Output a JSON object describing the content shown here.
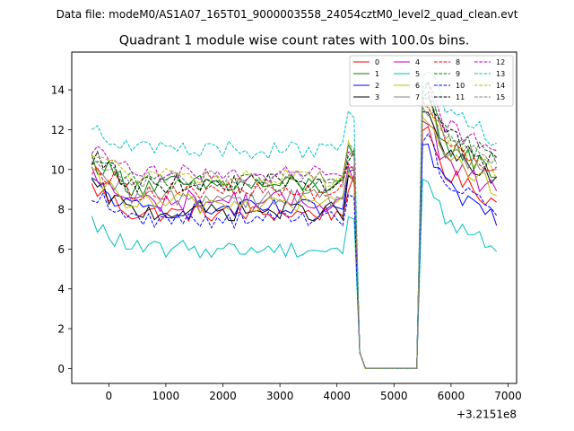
{
  "figure": {
    "suptitle": "Data file: modeM0/AS1A07_165T01_9000003558_24054cztM0_level2_quad_clean.evt"
  },
  "chart_data": {
    "type": "line",
    "title": "Quadrant 1 module wise count rates with 100.0s bins.",
    "xlabel": "",
    "ylabel": "",
    "x_offset_label": "+3.2151e8",
    "xlim": [
      -650,
      7150
    ],
    "ylim": [
      -0.75,
      15.9
    ],
    "xticks": [
      0,
      1000,
      2000,
      3000,
      4000,
      5000,
      6000,
      7000
    ],
    "xtick_labels": [
      "0",
      "1000",
      "2000",
      "3000",
      "4000",
      "5000",
      "6000",
      "7000"
    ],
    "yticks": [
      0,
      2,
      4,
      6,
      8,
      10,
      12,
      14
    ],
    "ytick_labels": [
      "0",
      "2",
      "4",
      "6",
      "8",
      "10",
      "12",
      "14"
    ],
    "grid": false,
    "legend_position": "top-right",
    "legend_columns": 4,
    "time_segments": [
      {
        "start": -300,
        "end": 4300,
        "step": 100
      },
      {
        "start": 4300,
        "end": 5400,
        "step": 100
      },
      {
        "start": 5400,
        "end": 6800,
        "step": 100
      }
    ],
    "series": [
      {
        "name": "0",
        "color": "#ff0000",
        "dash": false,
        "level_a": 7.8,
        "level_b": 10.5,
        "amp": 0.45
      },
      {
        "name": "1",
        "color": "#008000",
        "dash": false,
        "level_a": 9.2,
        "level_b": 12.0,
        "amp": 0.55
      },
      {
        "name": "2",
        "color": "#0000ff",
        "dash": false,
        "level_a": 8.0,
        "level_b": 9.8,
        "amp": 0.5
      },
      {
        "name": "3",
        "color": "#000000",
        "dash": false,
        "level_a": 7.9,
        "level_b": 11.5,
        "amp": 0.5
      },
      {
        "name": "4",
        "color": "#bf00bf",
        "dash": false,
        "level_a": 8.4,
        "level_b": 11.0,
        "amp": 0.6
      },
      {
        "name": "5",
        "color": "#00bfbf",
        "dash": false,
        "level_a": 6.0,
        "level_b": 8.2,
        "amp": 0.45
      },
      {
        "name": "6",
        "color": "#bfbf00",
        "dash": false,
        "level_a": 8.3,
        "level_b": 11.3,
        "amp": 0.55
      },
      {
        "name": "7",
        "color": "#808080",
        "dash": false,
        "level_a": 8.6,
        "level_b": 11.8,
        "amp": 0.55
      },
      {
        "name": "8",
        "color": "#ff0000",
        "dash": true,
        "level_a": 8.9,
        "level_b": 12.2,
        "amp": 0.45
      },
      {
        "name": "9",
        "color": "#008000",
        "dash": true,
        "level_a": 9.4,
        "level_b": 12.6,
        "amp": 0.5
      },
      {
        "name": "10",
        "color": "#0000ff",
        "dash": true,
        "level_a": 7.5,
        "level_b": 10.2,
        "amp": 0.45
      },
      {
        "name": "11",
        "color": "#000000",
        "dash": true,
        "level_a": 9.3,
        "level_b": 12.4,
        "amp": 0.5
      },
      {
        "name": "12",
        "color": "#bf00bf",
        "dash": true,
        "level_a": 9.8,
        "level_b": 13.0,
        "amp": 0.45
      },
      {
        "name": "13",
        "color": "#00bfbf",
        "dash": true,
        "level_a": 11.0,
        "level_b": 13.6,
        "amp": 0.5
      },
      {
        "name": "14",
        "color": "#bfbf00",
        "dash": true,
        "level_a": 9.6,
        "level_b": 12.0,
        "amp": 0.45
      },
      {
        "name": "15",
        "color": "#808080",
        "dash": true,
        "level_a": 9.5,
        "level_b": 12.5,
        "amp": 0.45
      }
    ]
  }
}
